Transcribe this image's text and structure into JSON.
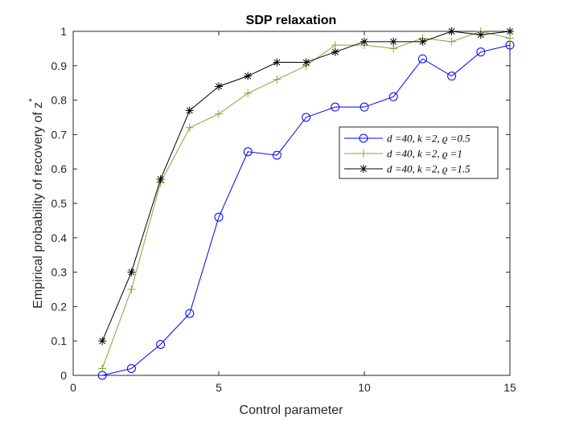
{
  "chart_data": {
    "type": "line",
    "title": "SDP relaxation",
    "xlabel": "Control parameter",
    "ylabel": "Empirical probability of recovery of z",
    "ylabel_sup": "*",
    "xlim": [
      0,
      15
    ],
    "ylim": [
      0,
      1
    ],
    "xticks": [
      "0",
      "5",
      "10",
      "15"
    ],
    "yticks": [
      "0",
      "0.1",
      "0.2",
      "0.3",
      "0.4",
      "0.5",
      "0.6",
      "0.7",
      "0.8",
      "0.9",
      "1"
    ],
    "grid": false,
    "legend_position": "right",
    "x": [
      1,
      2,
      3,
      4,
      5,
      6,
      7,
      8,
      9,
      10,
      11,
      12,
      13,
      14,
      15
    ],
    "series": [
      {
        "name": "d =40, k =2, ϱ =0.5",
        "color": "#0000ff",
        "marker": "circle",
        "values": [
          0.0,
          0.02,
          0.09,
          0.18,
          0.46,
          0.65,
          0.64,
          0.75,
          0.78,
          0.78,
          0.81,
          0.92,
          0.87,
          0.94,
          0.96
        ]
      },
      {
        "name": "d =40, k =2, ϱ =1",
        "color": "#77ac30",
        "marker": "plus",
        "values": [
          0.02,
          0.25,
          0.56,
          0.72,
          0.76,
          0.82,
          0.86,
          0.9,
          0.96,
          0.96,
          0.95,
          0.98,
          0.97,
          1.0,
          0.98
        ]
      },
      {
        "name": "d =40, k =2, ϱ =1.5",
        "color": "#000000",
        "marker": "asterisk",
        "values": [
          0.1,
          0.3,
          0.57,
          0.77,
          0.84,
          0.87,
          0.91,
          0.91,
          0.94,
          0.97,
          0.97,
          0.97,
          1.0,
          0.99,
          1.0
        ]
      }
    ]
  }
}
